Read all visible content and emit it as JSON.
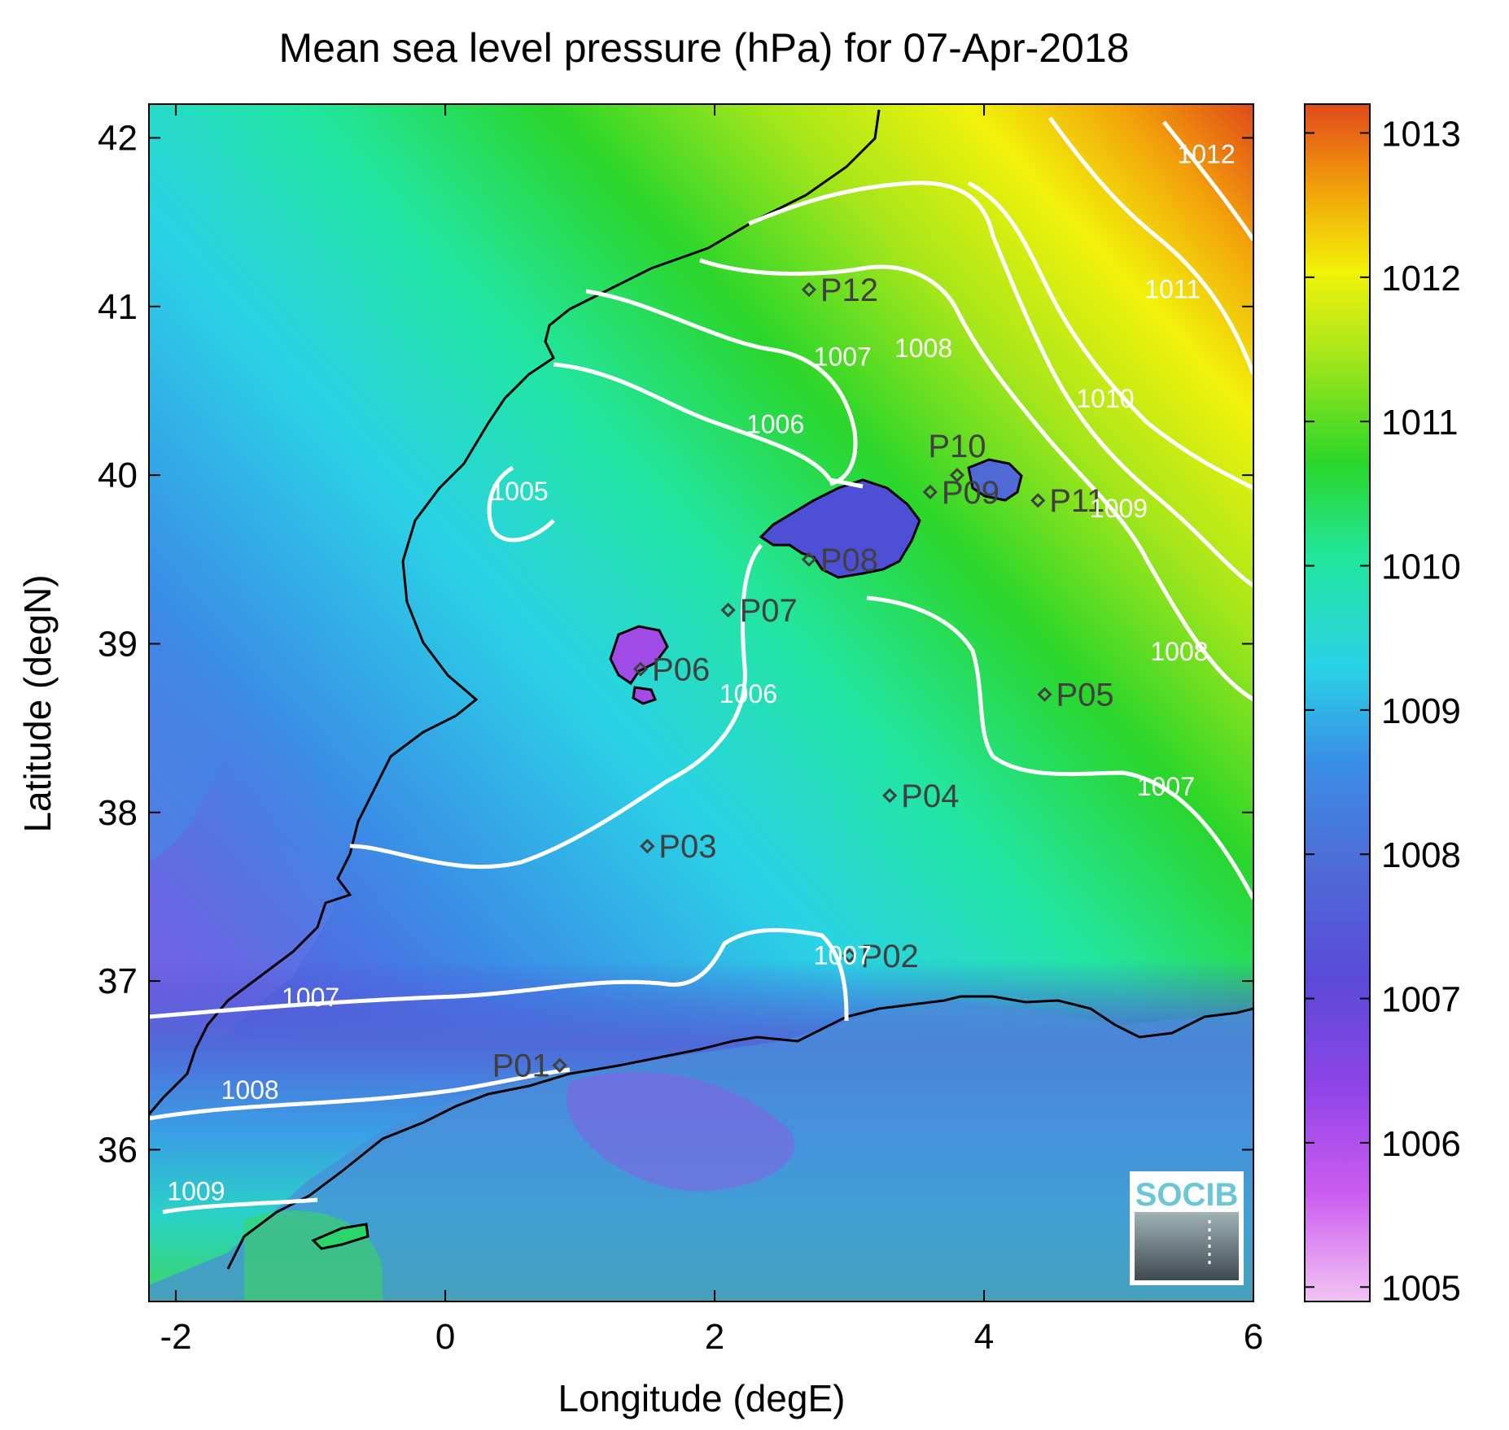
{
  "title": "Mean sea level pressure (hPa) for 07-Apr-2018",
  "xlabel": "Longitude (degE)",
  "ylabel": "Latitude (degN)",
  "logo_text": "SOCIB",
  "map_extent": {
    "lon": [
      -2.2,
      6.0
    ],
    "lat": [
      35.1,
      42.2
    ]
  },
  "x_ticks": [
    {
      "value": -2,
      "label": "-2"
    },
    {
      "value": 0,
      "label": "0"
    },
    {
      "value": 2,
      "label": "2"
    },
    {
      "value": 4,
      "label": "4"
    },
    {
      "value": 6,
      "label": "6"
    }
  ],
  "y_ticks": [
    {
      "value": 36,
      "label": "36"
    },
    {
      "value": 37,
      "label": "37"
    },
    {
      "value": 38,
      "label": "38"
    },
    {
      "value": 39,
      "label": "39"
    },
    {
      "value": 40,
      "label": "40"
    },
    {
      "value": 41,
      "label": "41"
    },
    {
      "value": 42,
      "label": "42"
    }
  ],
  "colorbar": {
    "range": [
      1004.9,
      1013.2
    ],
    "ticks": [
      {
        "value": 1005,
        "label": "1005"
      },
      {
        "value": 1006,
        "label": "1006"
      },
      {
        "value": 1007,
        "label": "1007"
      },
      {
        "value": 1008,
        "label": "1008"
      },
      {
        "value": 1009,
        "label": "1009"
      },
      {
        "value": 1010,
        "label": "1010"
      },
      {
        "value": 1011,
        "label": "1011"
      },
      {
        "value": 1012,
        "label": "1012"
      },
      {
        "value": 1013,
        "label": "1013"
      }
    ],
    "colors": [
      "#f2c4f4",
      "#cc5cf0",
      "#8e44e6",
      "#4f4fd6",
      "#3a8ee6",
      "#2ad2e6",
      "#22e6a0",
      "#2ad62a",
      "#a6e61a",
      "#f2f20a",
      "#f2a00a",
      "#e04a1a"
    ]
  },
  "stations": [
    {
      "name": "P01",
      "lon": 0.85,
      "lat": 36.5
    },
    {
      "name": "P02",
      "lon": 3.0,
      "lat": 37.15
    },
    {
      "name": "P03",
      "lon": 1.5,
      "lat": 37.8
    },
    {
      "name": "P04",
      "lon": 3.3,
      "lat": 38.1
    },
    {
      "name": "P05",
      "lon": 4.45,
      "lat": 38.7
    },
    {
      "name": "P06",
      "lon": 1.45,
      "lat": 38.85
    },
    {
      "name": "P07",
      "lon": 2.1,
      "lat": 39.2
    },
    {
      "name": "P08",
      "lon": 2.7,
      "lat": 39.5
    },
    {
      "name": "P09",
      "lon": 3.6,
      "lat": 39.9
    },
    {
      "name": "P10",
      "lon": 3.8,
      "lat": 40.0
    },
    {
      "name": "P11",
      "lon": 4.4,
      "lat": 39.85
    },
    {
      "name": "P12",
      "lon": 2.7,
      "lat": 41.1
    }
  ],
  "contours": [
    {
      "level": "1005",
      "label_lon": 0.55,
      "label_lat": 39.85
    },
    {
      "level": "1006",
      "label_lon": 2.45,
      "label_lat": 40.25
    },
    {
      "level": "1006",
      "label_lon": 2.25,
      "label_lat": 38.65
    },
    {
      "level": "1007",
      "label_lon": 2.95,
      "label_lat": 40.65
    },
    {
      "level": "1007",
      "label_lon": 5.35,
      "label_lat": 38.1
    },
    {
      "level": "1007",
      "label_lon": 2.95,
      "label_lat": 37.1
    },
    {
      "level": "1007",
      "label_lon": -1.0,
      "label_lat": 36.85
    },
    {
      "level": "1008",
      "label_lon": 3.55,
      "label_lat": 40.7
    },
    {
      "level": "1008",
      "label_lon": 5.45,
      "label_lat": 38.9
    },
    {
      "level": "1008",
      "label_lon": -1.45,
      "label_lat": 36.3
    },
    {
      "level": "1009",
      "label_lon": 5.0,
      "label_lat": 39.75
    },
    {
      "level": "1009",
      "label_lon": -1.85,
      "label_lat": 35.7
    },
    {
      "level": "1010",
      "label_lon": 4.9,
      "label_lat": 40.4
    },
    {
      "level": "1011",
      "label_lon": 5.4,
      "label_lat": 41.05
    },
    {
      "level": "1012",
      "label_lon": 5.65,
      "label_lat": 41.85
    }
  ]
}
